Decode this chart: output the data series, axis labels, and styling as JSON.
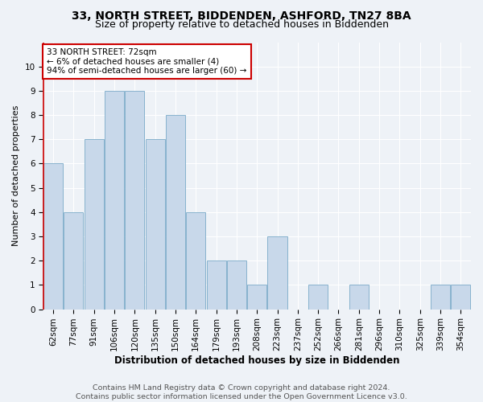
{
  "title": "33, NORTH STREET, BIDDENDEN, ASHFORD, TN27 8BA",
  "subtitle": "Size of property relative to detached houses in Biddenden",
  "xlabel": "Distribution of detached houses by size in Biddenden",
  "ylabel": "Number of detached properties",
  "categories": [
    "62sqm",
    "77sqm",
    "91sqm",
    "106sqm",
    "120sqm",
    "135sqm",
    "150sqm",
    "164sqm",
    "179sqm",
    "193sqm",
    "208sqm",
    "223sqm",
    "237sqm",
    "252sqm",
    "266sqm",
    "281sqm",
    "296sqm",
    "310sqm",
    "325sqm",
    "339sqm",
    "354sqm"
  ],
  "values": [
    6,
    4,
    7,
    9,
    9,
    7,
    8,
    4,
    2,
    2,
    1,
    3,
    0,
    1,
    0,
    1,
    0,
    0,
    0,
    1,
    1
  ],
  "bar_color": "#c8d8ea",
  "bar_edge_color": "#7aaac8",
  "annotation_box_text": "33 NORTH STREET: 72sqm\n← 6% of detached houses are smaller (4)\n94% of semi-detached houses are larger (60) →",
  "annotation_box_color": "#cc0000",
  "ylim": [
    0,
    11
  ],
  "yticks": [
    0,
    1,
    2,
    3,
    4,
    5,
    6,
    7,
    8,
    9,
    10
  ],
  "footer_text": "Contains HM Land Registry data © Crown copyright and database right 2024.\nContains public sector information licensed under the Open Government Licence v3.0.",
  "background_color": "#eef2f7",
  "grid_color": "#ffffff",
  "title_fontsize": 10,
  "subtitle_fontsize": 9,
  "xlabel_fontsize": 8.5,
  "ylabel_fontsize": 8,
  "tick_fontsize": 7.5,
  "footer_fontsize": 6.8,
  "annot_fontsize": 7.5
}
